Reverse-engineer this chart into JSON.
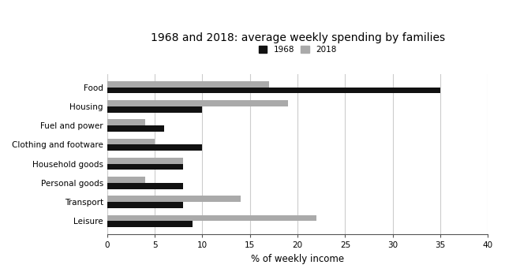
{
  "title": "1968 and 2018: average weekly spending by families",
  "xlabel": "% of weekly income",
  "categories": [
    "Food",
    "Housing",
    "Fuel and power",
    "Clothing and footware",
    "Household goods",
    "Personal goods",
    "Transport",
    "Leisure"
  ],
  "values_1968": [
    35,
    10,
    6,
    10,
    8,
    8,
    8,
    9
  ],
  "values_2018": [
    17,
    19,
    4,
    5,
    8,
    4,
    14,
    22
  ],
  "color_1968": "#111111",
  "color_2018": "#aaaaaa",
  "legend_1968": "1968",
  "legend_2018": "2018",
  "xlim": [
    0,
    40
  ],
  "xticks": [
    0,
    5,
    10,
    15,
    20,
    25,
    30,
    35,
    40
  ],
  "bar_height": 0.32,
  "figsize": [
    6.4,
    3.5
  ],
  "dpi": 100,
  "background_color": "#ffffff",
  "title_fontsize": 10,
  "label_fontsize": 7.5,
  "tick_fontsize": 7.5,
  "xlabel_fontsize": 8.5
}
